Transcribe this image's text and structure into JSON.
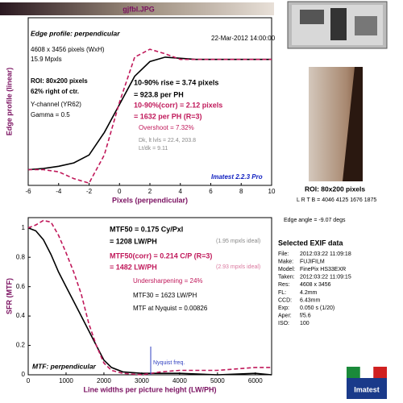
{
  "header": {
    "title": "gjfbl.JPG"
  },
  "chart_data": [
    {
      "type": "line",
      "title": "Edge profile: perpendicular",
      "xlabel": "Pixels (perpendicular)",
      "ylabel": "Edge profile (linear)",
      "x": [
        -6,
        -5,
        -4,
        -3,
        -2,
        -1,
        0,
        1,
        2,
        3,
        4,
        5,
        6,
        7,
        8,
        9,
        10
      ],
      "series": [
        {
          "color": "#000000",
          "dash": false,
          "values": [
            0.02,
            0.03,
            0.05,
            0.08,
            0.15,
            0.35,
            0.6,
            0.85,
            0.98,
            1.02,
            1.01,
            1.0,
            1.0,
            1.0,
            1.0,
            1.0,
            1.0
          ]
        },
        {
          "color": "#c0185a",
          "dash": true,
          "values": [
            0.02,
            0.02,
            0.0,
            -0.06,
            -0.1,
            0.15,
            0.62,
            1.02,
            1.09,
            1.05,
            1.0,
            1.0,
            1.0,
            1.0,
            1.0,
            1.0,
            1.0
          ]
        }
      ],
      "xlim": [
        -6,
        10
      ],
      "ylim": [
        -0.12,
        1.37
      ],
      "xticks": [
        -6,
        -4,
        -2,
        0,
        2,
        4,
        6,
        8,
        10
      ],
      "notes": [
        "22-Mar-2012 14:00:00",
        "4608 x 3456 pixels (WxH)",
        "15.9 Mpxls",
        "ROI: 80x200 pixels",
        "62% right of ctr.",
        "Y-channel (YR62)",
        "Gamma = 0.5",
        "10-90% rise = 3.74 pixels",
        "= 923.8 per PH",
        "10-90%(corr) = 2.12 pixels",
        "= 1632 per PH (R=3)",
        "Overshoot = 7.32%",
        "Dk, lt lvls = 22.4, 203.8",
        "Lt/dk = 9.11",
        "Imatest 2.2.3 Pro"
      ]
    },
    {
      "type": "line",
      "title": "MTF: perpendicular",
      "xlabel": "Line widths per picture height (LW/PH)",
      "ylabel": "SFR (MTF)",
      "x": [
        0,
        200,
        400,
        600,
        800,
        1000,
        1200,
        1400,
        1600,
        1800,
        2000,
        2200,
        2500,
        3000,
        3500,
        4000,
        5000,
        6000,
        6430
      ],
      "series": [
        {
          "color": "#000000",
          "dash": false,
          "values": [
            1,
            0.98,
            0.92,
            0.82,
            0.7,
            0.6,
            0.5,
            0.4,
            0.3,
            0.2,
            0.1,
            0.05,
            0.02,
            0.01,
            0.01,
            0.01,
            0.0,
            0.01,
            0.0
          ]
        },
        {
          "color": "#c0185a",
          "dash": true,
          "values": [
            1,
            1.02,
            1.05,
            1.04,
            0.95,
            0.83,
            0.7,
            0.55,
            0.35,
            0.2,
            0.08,
            0.03,
            0.01,
            0.0,
            0.02,
            0.03,
            0.03,
            0.05,
            0.05
          ]
        }
      ],
      "xlim": [
        0,
        6430
      ],
      "ylim": [
        0,
        1.07
      ],
      "xticks": [
        0,
        1000,
        2000,
        3000,
        4000,
        5000,
        6000
      ],
      "yticks": [
        0,
        0.2,
        0.4,
        0.6,
        0.8,
        1
      ],
      "notes": [
        "MTF50 = 0.175 Cy/Pxl",
        "= 1208 LW/PH",
        "(1.95 mpxls ideal)",
        "MTF50(corr) = 0.214 C/P  (R=3)",
        "= 1482 LW/PH",
        "(2.93 mpxls ideal)",
        "Undersharpening = 24%",
        "MTF30 = 1623 LW/PH",
        "MTF at Nyquist = 0.00826",
        "Nyquist freq."
      ]
    }
  ],
  "side_panel": {
    "roi": "ROI: 80x200 pixels",
    "lrtb": "L R T B = 4046 4125 1676 1875",
    "edge_angle": "Edge angle = -9.07 degs",
    "exif_title": "Selected EXIF data",
    "exif": [
      [
        "File:",
        "2012:03:22 11:09:18"
      ],
      [
        "Make:",
        "FUJIFILM"
      ],
      [
        "Model:",
        "FinePix HS33EXR"
      ],
      [
        "Taken:",
        "2012:03:22 11:09:15"
      ],
      [
        "Res:",
        "4608 x 3456"
      ],
      [
        "FL:",
        "4.2mm"
      ],
      [
        "CCD:",
        "6.43mm"
      ],
      [
        "Exp:",
        "0.050 s (1/20)"
      ],
      [
        "Aper:",
        "f/5.6"
      ],
      [
        "ISO:",
        "100"
      ]
    ],
    "logo": "Imatest"
  }
}
